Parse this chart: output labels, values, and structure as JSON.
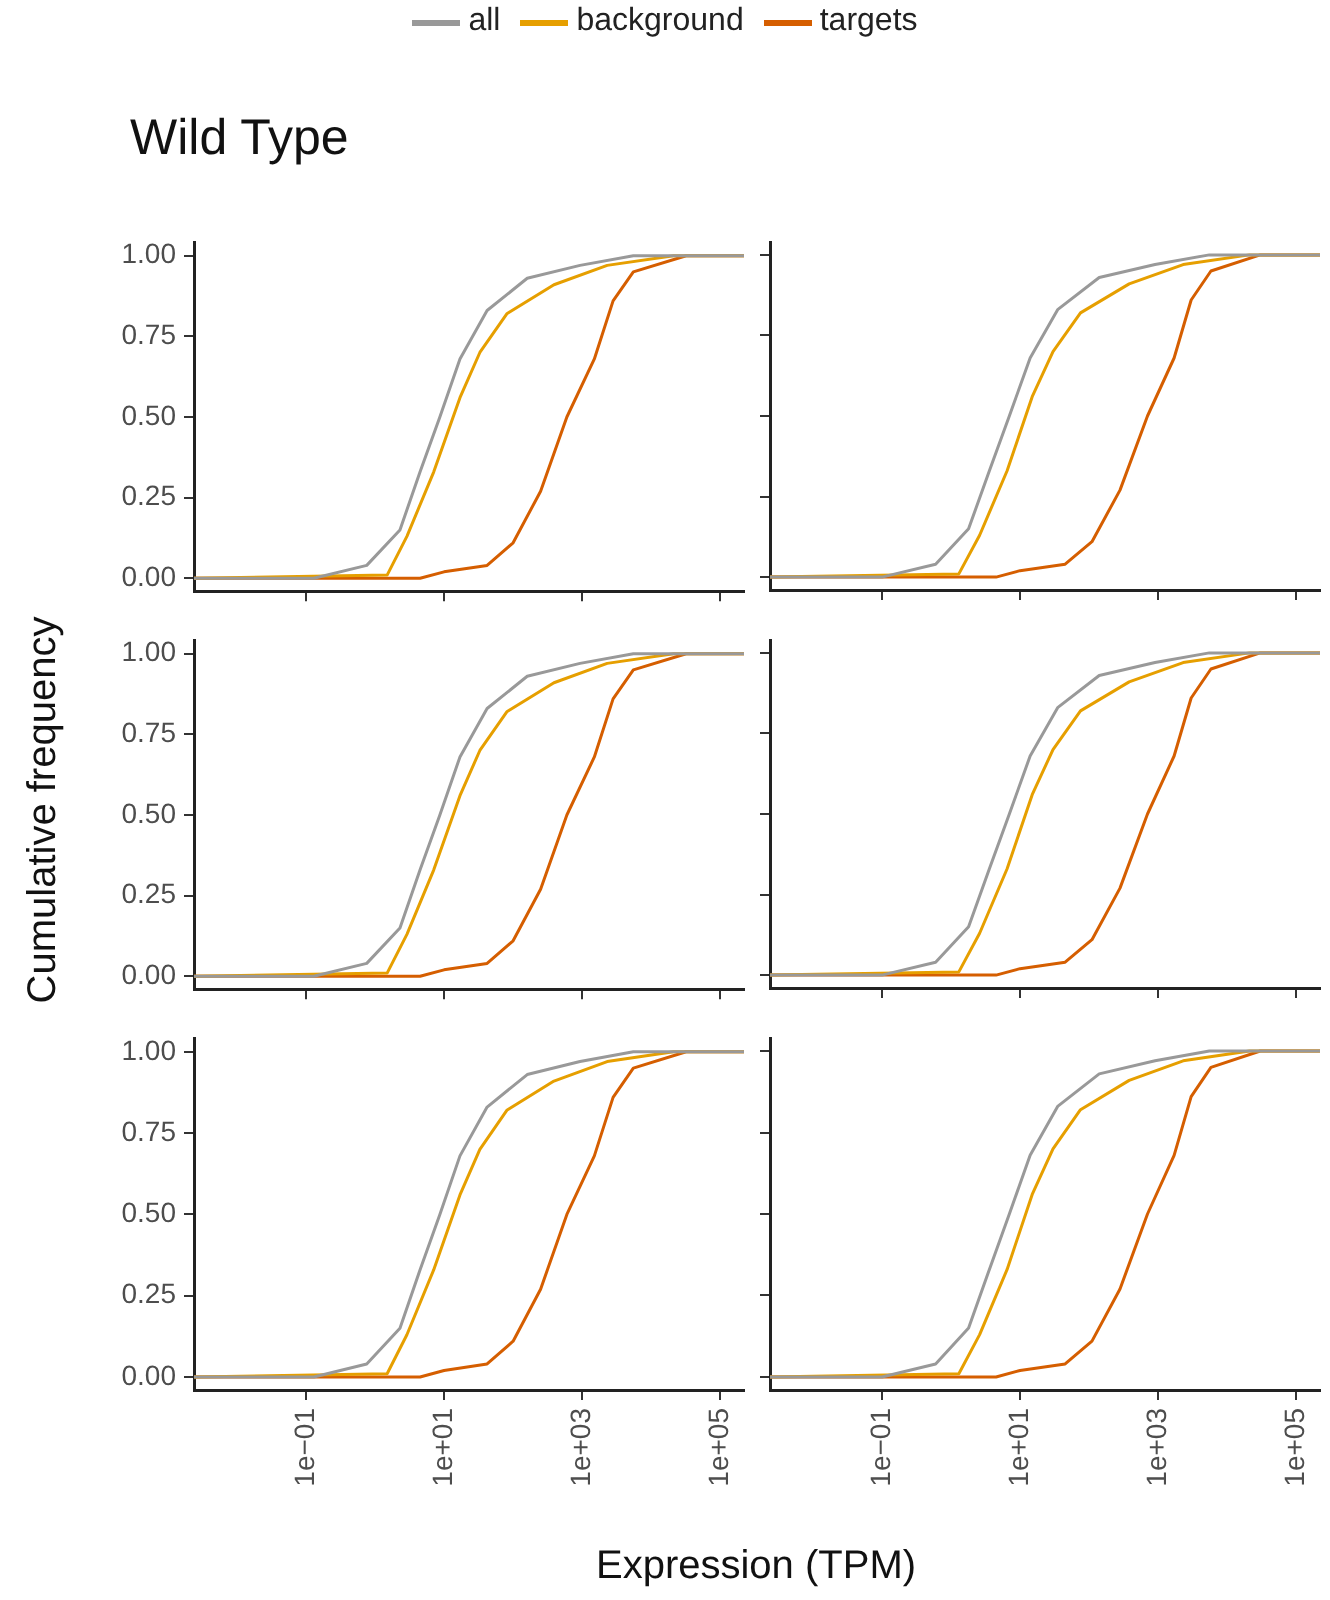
{
  "chart_data": [
    {
      "type": "line",
      "title": "Wild Type",
      "legend": "top",
      "log": "x",
      "xlim": [
        0.0024,
        220000
      ],
      "ylim": [
        -0.04,
        1.04
      ],
      "xticks": [
        {
          "value": 0.1,
          "label": null
        },
        {
          "value": 10,
          "label": null
        },
        {
          "value": 1000,
          "label": null
        },
        {
          "value": 100000,
          "label": null
        }
      ],
      "yticks": [
        {
          "value": 0,
          "label": "0.00"
        },
        {
          "value": 0.25,
          "label": "0.25"
        },
        {
          "value": 0.5,
          "label": "0.50"
        },
        {
          "value": 0.75,
          "label": "0.75"
        },
        {
          "value": 1,
          "label": "1.00"
        }
      ],
      "tick_labels": "y",
      "marker": "none",
      "series": [
        {
          "name": "all",
          "color": "#999999",
          "x": [
            0.0024,
            0.13,
            0.76,
            2.3,
            4.5,
            8.7,
            17,
            42,
            160,
            930,
            5500,
            220000
          ],
          "values": [
            0,
            0,
            0.04,
            0.15,
            0.33,
            0.5,
            0.68,
            0.83,
            0.93,
            0.97,
            1,
            1
          ]
        },
        {
          "name": "background",
          "color": "#e69f00",
          "x": [
            0.0024,
            1.5,
            2.9,
            7.1,
            17,
            33,
            81,
            390,
            2300,
            21000,
            220000
          ],
          "values": [
            0,
            0.01,
            0.13,
            0.33,
            0.56,
            0.7,
            0.82,
            0.91,
            0.97,
            1,
            1
          ]
        },
        {
          "name": "targets",
          "color": "#d55e00",
          "x": [
            0.0024,
            4.5,
            10,
            42,
            100,
            250,
            600,
            1500,
            2800,
            5500,
            32000,
            220000
          ],
          "values": [
            0,
            0,
            0.02,
            0.04,
            0.11,
            0.27,
            0.5,
            0.68,
            0.86,
            0.95,
            1,
            1
          ]
        }
      ]
    },
    {
      "type": "line",
      "log": "x",
      "xlim": [
        0.0024,
        220000
      ],
      "ylim": [
        -0.04,
        1.04
      ],
      "xticks": [
        0.1,
        10,
        1000,
        100000
      ],
      "yticks": [
        0,
        0.25,
        0.5,
        0.75,
        1
      ],
      "tick_labels": false,
      "marker": "none",
      "series": [
        {
          "color": "#999999",
          "x": [
            0.0024,
            0.1,
            0.6,
            1.8,
            3.6,
            7,
            14,
            35,
            140,
            900,
            5500,
            220000
          ],
          "values": [
            0,
            0,
            0.04,
            0.15,
            0.33,
            0.5,
            0.68,
            0.83,
            0.93,
            0.97,
            1,
            1
          ]
        },
        {
          "color": "#e69f00",
          "x": [
            0.0024,
            1.3,
            2.6,
            6.5,
            15,
            30,
            75,
            380,
            2300,
            21000,
            220000
          ],
          "values": [
            0,
            0.01,
            0.13,
            0.33,
            0.56,
            0.7,
            0.82,
            0.91,
            0.97,
            1,
            1
          ]
        },
        {
          "color": "#d55e00",
          "x": [
            0.0024,
            4.5,
            10,
            45,
            110,
            280,
            700,
            1700,
            3000,
            5800,
            30000,
            220000
          ],
          "values": [
            0,
            0,
            0.02,
            0.04,
            0.11,
            0.27,
            0.5,
            0.68,
            0.86,
            0.95,
            1,
            1
          ]
        }
      ]
    },
    {
      "type": "line",
      "ylabel": "Cumulative frequency",
      "log": "x",
      "xlim": [
        0.0024,
        220000
      ],
      "ylim": [
        -0.04,
        1.04
      ],
      "xticks": [
        {
          "value": 0.1,
          "label": null
        },
        {
          "value": 10,
          "label": null
        },
        {
          "value": 1000,
          "label": null
        },
        {
          "value": 100000,
          "label": null
        }
      ],
      "yticks": [
        {
          "value": 0,
          "label": "0.00"
        },
        {
          "value": 0.25,
          "label": "0.25"
        },
        {
          "value": 0.5,
          "label": "0.50"
        },
        {
          "value": 0.75,
          "label": "0.75"
        },
        {
          "value": 1,
          "label": "1.00"
        }
      ],
      "tick_labels": "y",
      "marker": "none",
      "series": [
        {
          "color": "#999999",
          "x": [
            0.0024,
            0.13,
            0.76,
            2.3,
            4.5,
            8.7,
            17,
            42,
            160,
            930,
            5500,
            220000
          ],
          "values": [
            0,
            0,
            0.04,
            0.15,
            0.33,
            0.5,
            0.68,
            0.83,
            0.93,
            0.97,
            1,
            1
          ]
        },
        {
          "color": "#e69f00",
          "x": [
            0.0024,
            1.5,
            2.9,
            7.1,
            17,
            33,
            81,
            390,
            2300,
            21000,
            220000
          ],
          "values": [
            0,
            0.01,
            0.13,
            0.33,
            0.56,
            0.7,
            0.82,
            0.91,
            0.97,
            1,
            1
          ]
        },
        {
          "color": "#d55e00",
          "x": [
            0.0024,
            4.5,
            10,
            42,
            100,
            250,
            600,
            1500,
            2800,
            5500,
            32000,
            220000
          ],
          "values": [
            0,
            0,
            0.02,
            0.04,
            0.11,
            0.27,
            0.5,
            0.68,
            0.86,
            0.95,
            1,
            1
          ]
        }
      ]
    },
    {
      "type": "line",
      "log": "x",
      "xlim": [
        0.0024,
        220000
      ],
      "ylim": [
        -0.04,
        1.04
      ],
      "xticks": [
        0.1,
        10,
        1000,
        100000
      ],
      "yticks": [
        0,
        0.25,
        0.5,
        0.75,
        1
      ],
      "tick_labels": false,
      "marker": "none",
      "series": [
        {
          "color": "#999999",
          "x": [
            0.0024,
            0.1,
            0.6,
            1.8,
            3.6,
            7,
            14,
            35,
            140,
            900,
            5500,
            220000
          ],
          "values": [
            0,
            0,
            0.04,
            0.15,
            0.33,
            0.5,
            0.68,
            0.83,
            0.93,
            0.97,
            1,
            1
          ]
        },
        {
          "color": "#e69f00",
          "x": [
            0.0024,
            1.3,
            2.6,
            6.5,
            15,
            30,
            75,
            380,
            2300,
            21000,
            220000
          ],
          "values": [
            0,
            0.01,
            0.13,
            0.33,
            0.56,
            0.7,
            0.82,
            0.91,
            0.97,
            1,
            1
          ]
        },
        {
          "color": "#d55e00",
          "x": [
            0.0024,
            4.5,
            10,
            45,
            110,
            280,
            700,
            1700,
            3000,
            5800,
            30000,
            220000
          ],
          "values": [
            0,
            0,
            0.02,
            0.04,
            0.11,
            0.27,
            0.5,
            0.68,
            0.86,
            0.95,
            1,
            1
          ]
        }
      ]
    },
    {
      "type": "line",
      "xlabel": "Expression (TPM)",
      "log": "x",
      "xlim": [
        0.0024,
        220000
      ],
      "ylim": [
        -0.04,
        1.04
      ],
      "xticks": [
        {
          "value": 0.1,
          "label": "1e−01"
        },
        {
          "value": 10,
          "label": "1e+01"
        },
        {
          "value": 1000,
          "label": "1e+03"
        },
        {
          "value": 100000,
          "label": "1e+05"
        }
      ],
      "yticks": [
        {
          "value": 0,
          "label": "0.00"
        },
        {
          "value": 0.25,
          "label": "0.25"
        },
        {
          "value": 0.5,
          "label": "0.50"
        },
        {
          "value": 0.75,
          "label": "0.75"
        },
        {
          "value": 1,
          "label": "1.00"
        }
      ],
      "marker": "none",
      "series": [
        {
          "color": "#999999",
          "x": [
            0.0024,
            0.13,
            0.76,
            2.3,
            4.5,
            8.7,
            17,
            42,
            160,
            930,
            5500,
            220000
          ],
          "values": [
            0,
            0,
            0.04,
            0.15,
            0.33,
            0.5,
            0.68,
            0.83,
            0.93,
            0.97,
            1,
            1
          ]
        },
        {
          "color": "#e69f00",
          "x": [
            0.0024,
            1.5,
            2.9,
            7.1,
            17,
            33,
            81,
            390,
            2300,
            21000,
            220000
          ],
          "values": [
            0,
            0.01,
            0.13,
            0.33,
            0.56,
            0.7,
            0.82,
            0.91,
            0.97,
            1,
            1
          ]
        },
        {
          "color": "#d55e00",
          "x": [
            0.0024,
            4.5,
            10,
            42,
            100,
            250,
            600,
            1500,
            2800,
            5500,
            32000,
            220000
          ],
          "values": [
            0,
            0,
            0.02,
            0.04,
            0.11,
            0.27,
            0.5,
            0.68,
            0.86,
            0.95,
            1,
            1
          ]
        }
      ]
    },
    {
      "type": "line",
      "log": "x",
      "xlim": [
        0.0024,
        220000
      ],
      "ylim": [
        -0.04,
        1.04
      ],
      "xticks": [
        {
          "value": 0.1,
          "label": "1e−01"
        },
        {
          "value": 10,
          "label": "1e+01"
        },
        {
          "value": 1000,
          "label": "1e+03"
        },
        {
          "value": 100000,
          "label": "1e+05"
        }
      ],
      "yticks": [
        0,
        0.25,
        0.5,
        0.75,
        1
      ],
      "tick_labels": "x",
      "marker": "none",
      "series": [
        {
          "color": "#999999",
          "x": [
            0.0024,
            0.1,
            0.6,
            1.8,
            3.6,
            7,
            14,
            35,
            140,
            900,
            5500,
            220000
          ],
          "values": [
            0,
            0,
            0.04,
            0.15,
            0.33,
            0.5,
            0.68,
            0.83,
            0.93,
            0.97,
            1,
            1
          ]
        },
        {
          "color": "#e69f00",
          "x": [
            0.0024,
            1.3,
            2.6,
            6.5,
            15,
            30,
            75,
            380,
            2300,
            21000,
            220000
          ],
          "values": [
            0,
            0.01,
            0.13,
            0.33,
            0.56,
            0.7,
            0.82,
            0.91,
            0.97,
            1,
            1
          ]
        },
        {
          "color": "#d55e00",
          "x": [
            0.0024,
            4.5,
            10,
            45,
            110,
            280,
            700,
            1700,
            3000,
            5800,
            30000,
            220000
          ],
          "values": [
            0,
            0,
            0.02,
            0.04,
            0.11,
            0.27,
            0.5,
            0.68,
            0.86,
            0.95,
            1,
            1
          ]
        }
      ]
    }
  ]
}
